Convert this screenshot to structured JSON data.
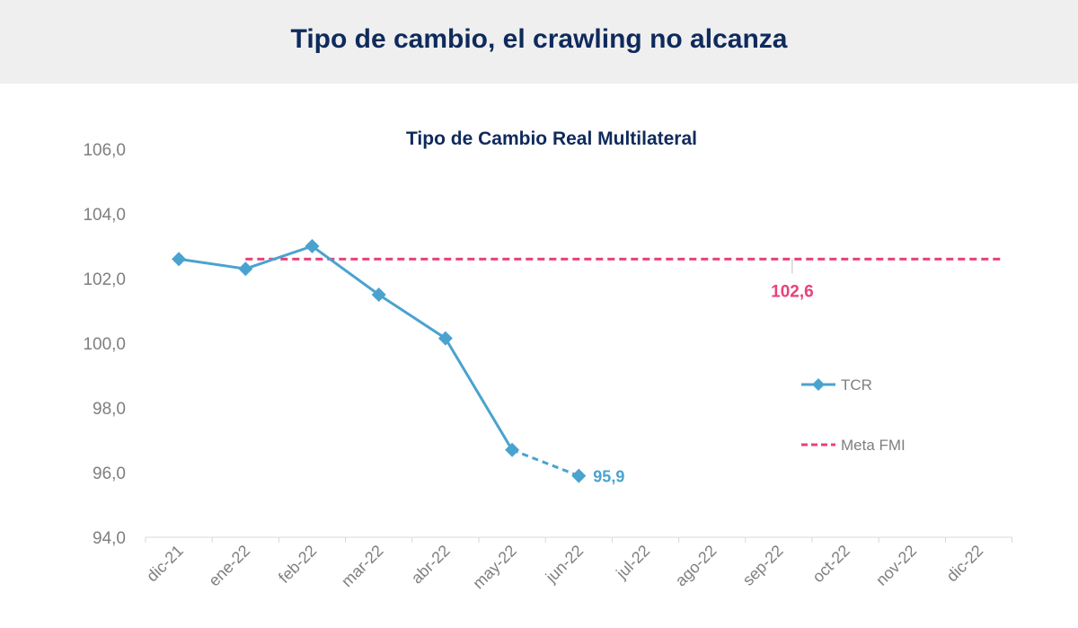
{
  "header": {
    "title": "Tipo de cambio, el crawling no alcanza"
  },
  "colors": {
    "tcr": "#4aa3cf",
    "meta": "#e8417a",
    "title": "#0f2a5c",
    "axis": "#7f7f7f",
    "header_bg": "#efefef"
  },
  "chart_data": {
    "type": "line",
    "title": "Tipo de Cambio Real Multilateral",
    "xlabel": "",
    "ylabel": "",
    "categories": [
      "dic-21",
      "ene-22",
      "feb-22",
      "mar-22",
      "abr-22",
      "may-22",
      "jun-22",
      "jul-22",
      "ago-22",
      "sep-22",
      "oct-22",
      "nov-22",
      "dic-22"
    ],
    "ylim": [
      94,
      106
    ],
    "yticks": [
      94,
      96,
      98,
      100,
      102,
      104,
      106
    ],
    "ytick_labels": [
      "94,0",
      "96,0",
      "98,0",
      "100,0",
      "102,0",
      "104,0",
      "106,0"
    ],
    "grid": false,
    "legend": "right",
    "series": [
      {
        "name": "TCR",
        "style": "solid-diamond",
        "values": [
          102.6,
          102.3,
          103.0,
          101.5,
          100.15,
          96.7,
          95.9,
          null,
          null,
          null,
          null,
          null,
          null
        ],
        "dashed_last_segment": true
      },
      {
        "name": "Meta FMI",
        "style": "dashed",
        "values": [
          null,
          102.6,
          102.6,
          102.6,
          102.6,
          102.6,
          102.6,
          102.6,
          102.6,
          102.6,
          102.6,
          102.6,
          102.6
        ]
      }
    ],
    "annotations": [
      {
        "text": "95,9",
        "series": "TCR",
        "category": "jun-22",
        "value": 95.9
      },
      {
        "text": "102,6",
        "series": "Meta FMI",
        "category": "sep-22",
        "value": 102.6
      }
    ]
  }
}
